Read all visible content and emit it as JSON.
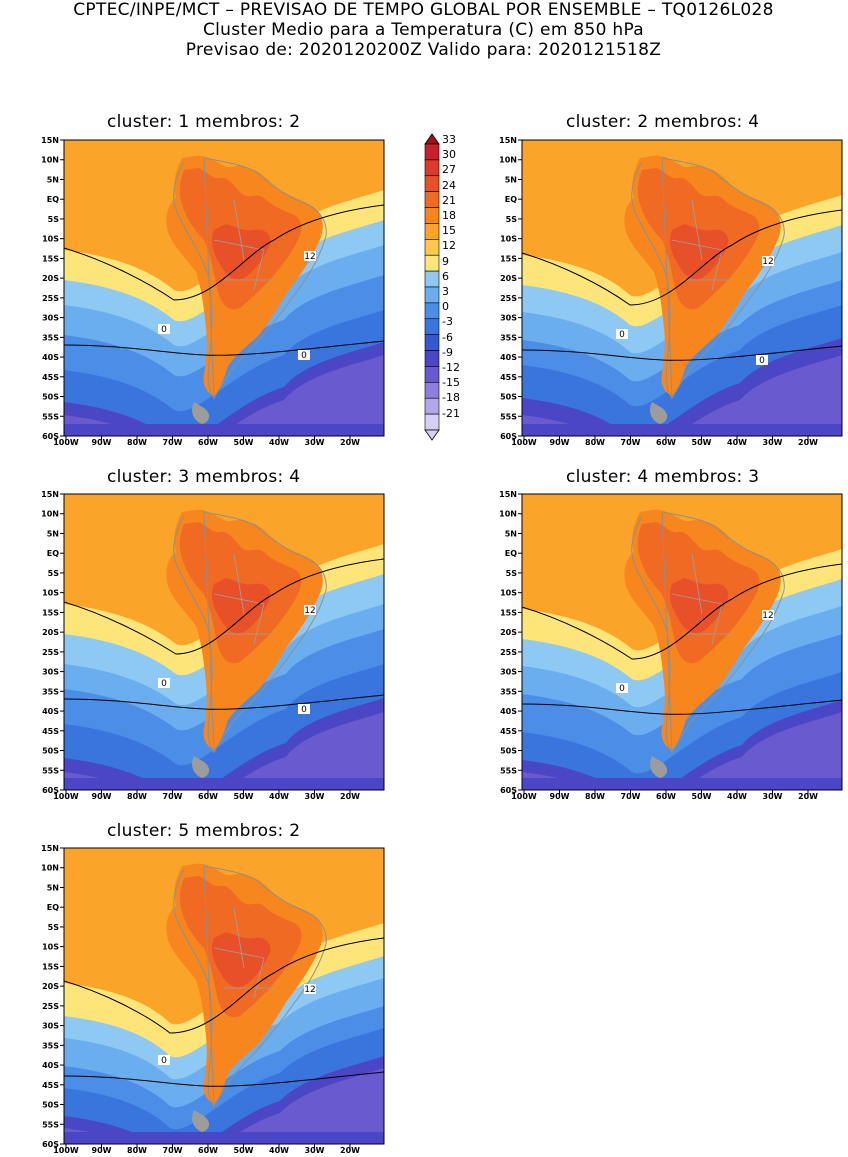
{
  "header": {
    "line1": "CPTEC/INPE/MCT – PREVISAO DE TEMPO GLOBAL POR ENSEMBLE – TQ0126L028",
    "line2": "Cluster Medio para a Temperatura (C) em 850 hPa",
    "line3": "Previsao de: 2020120200Z    Valido para: 2020121518Z"
  },
  "map_axes": {
    "lat_labels": [
      "15N",
      "10N",
      "5N",
      "EQ",
      "5S",
      "10S",
      "15S",
      "20S",
      "25S",
      "30S",
      "35S",
      "40S",
      "45S",
      "50S",
      "55S",
      "60S"
    ],
    "lon_labels": [
      "100W",
      "90W",
      "80W",
      "70W",
      "60W",
      "50W",
      "40W",
      "30W",
      "20W"
    ]
  },
  "panels": [
    {
      "title": "cluster: 1   membros: 2",
      "contour_labels": [
        "12",
        "0",
        "0"
      ]
    },
    {
      "title": "cluster: 2   membros: 4",
      "contour_labels": [
        "12",
        "0",
        "0"
      ]
    },
    {
      "title": "cluster: 3   membros: 4",
      "contour_labels": [
        "12",
        "0",
        "0"
      ]
    },
    {
      "title": "cluster: 4   membros: 3",
      "contour_labels": [
        "12",
        "0"
      ]
    },
    {
      "title": "cluster: 5   membros: 2",
      "contour_labels": [
        "12",
        "0"
      ]
    }
  ],
  "colorbar": {
    "labels": [
      "33",
      "30",
      "27",
      "24",
      "21",
      "18",
      "15",
      "12",
      "9",
      "6",
      "3",
      "0",
      "-3",
      "-6",
      "-9",
      "-12",
      "-15",
      "-18",
      "-21"
    ],
    "colors": [
      "#a50f15",
      "#c8202a",
      "#dc3b2a",
      "#e8502a",
      "#f06a24",
      "#f7861e",
      "#fba42a",
      "#fcc84c",
      "#fde57a",
      "#8ec9f3",
      "#6aaef0",
      "#4a8ee8",
      "#3a75de",
      "#3558cf",
      "#4a46c6",
      "#6a5ad0",
      "#8f80dd",
      "#b3a7e8",
      "#d6cef3"
    ]
  }
}
